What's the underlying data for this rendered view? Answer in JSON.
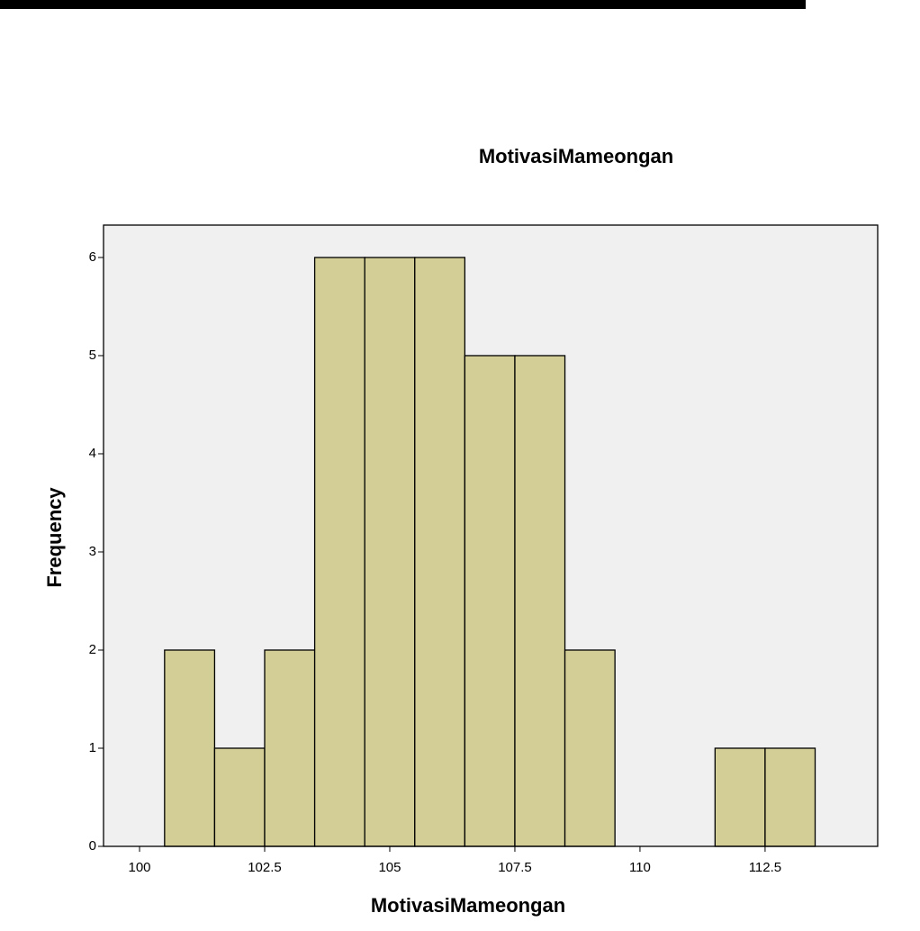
{
  "chart_data": {
    "type": "histogram",
    "title": "MotivasiMameongan",
    "x_label": "MotivasiMameongan",
    "y_label": "Frequency",
    "bins": [
      100.5,
      101.5,
      102.5,
      103.5,
      104.5,
      105.5,
      106.5,
      107.5,
      108.5,
      109.5,
      110.5,
      111.5,
      112.5,
      113.5
    ],
    "values": [
      2,
      1,
      2,
      6,
      6,
      6,
      5,
      5,
      2,
      0,
      0,
      1,
      1
    ],
    "color": "#d3ce96",
    "plot_background": "#f0f0f0",
    "xlim": [
      99.28,
      114.75
    ],
    "xticks": [
      100,
      102.5,
      105,
      107.5,
      110,
      112.5
    ],
    "ylim": [
      0,
      6.33
    ],
    "yticks": [
      0,
      1,
      2,
      3,
      4,
      5,
      6
    ]
  }
}
